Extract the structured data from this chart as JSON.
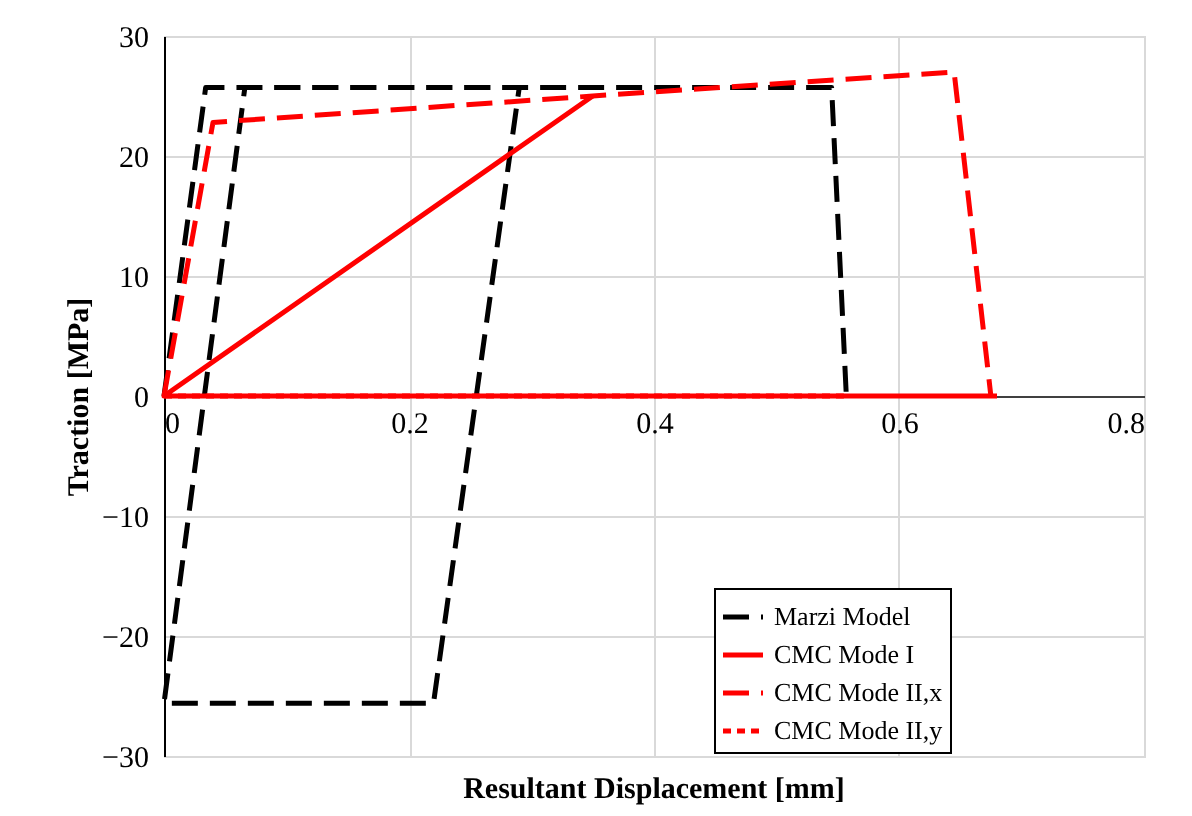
{
  "chart_data": {
    "type": "line",
    "xlabel": "Resultant Displacement [mm]",
    "ylabel": "Traction [MPa]",
    "xlim": [
      0,
      0.8
    ],
    "xticks": [
      0,
      0.2,
      0.4,
      0.6,
      0.8
    ],
    "ylim": [
      -30,
      30
    ],
    "yticks": [
      -30,
      -20,
      -10,
      0,
      10,
      20,
      30
    ],
    "grid": true,
    "legend": "bottom right",
    "marker": "none",
    "series": [
      {
        "name": "Marzi Model",
        "color": "#000000",
        "line_style": "dashed",
        "x": [
          0,
          0.034,
          0.29,
          0.22,
          0,
          0.066,
          0.545,
          0.557
        ],
        "values": [
          0,
          25.7,
          25.7,
          -25.6,
          -25.6,
          25.7,
          25.7,
          0
        ]
      },
      {
        "name": "CMC Mode I",
        "color": "#ff0000",
        "line_style": "solid",
        "x": [
          0.68,
          0,
          0.35
        ],
        "values": [
          0,
          0,
          25
        ]
      },
      {
        "name": "CMC Mode II,x",
        "color": "#ff0000",
        "line_style": "dashed",
        "x": [
          0,
          0.04,
          0.35,
          0.645,
          0.675
        ],
        "values": [
          0,
          22.8,
          25,
          27,
          0
        ]
      },
      {
        "name": "CMC Mode II,y",
        "color": "#ff0000",
        "line_style": "dotted",
        "x": [
          0,
          0.555
        ],
        "values": [
          0,
          0
        ]
      }
    ]
  }
}
